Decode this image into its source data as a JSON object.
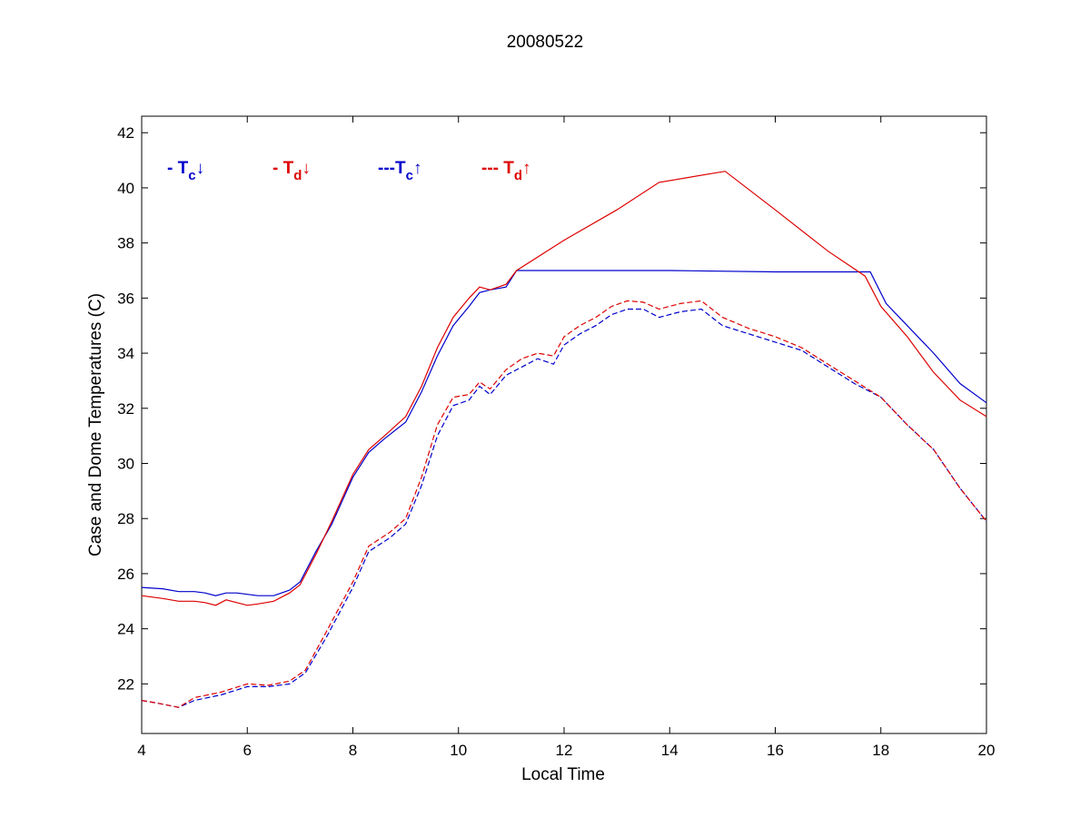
{
  "chart_data": {
    "type": "line",
    "title": "20080522",
    "xlabel": "Local Time",
    "ylabel": "Case and Dome Temperatures (C)",
    "xlim": [
      4,
      20
    ],
    "ylim": [
      20.2,
      42.6
    ],
    "xticks": [
      4,
      6,
      8,
      10,
      12,
      14,
      16,
      18,
      20
    ],
    "yticks": [
      22,
      24,
      26,
      28,
      30,
      32,
      34,
      36,
      38,
      40,
      42
    ],
    "grid": false,
    "legend_position": "top-left",
    "series": [
      {
        "name": "- Tc↓",
        "legend_prefix": "- ",
        "legend_base": "T",
        "legend_sub": "c",
        "legend_arrow": "↓",
        "color": "#0000cc",
        "dash": "solid",
        "x": [
          4.0,
          4.4,
          4.7,
          5.0,
          5.2,
          5.4,
          5.6,
          5.8,
          6.0,
          6.2,
          6.5,
          6.8,
          7.0,
          7.3,
          7.6,
          8.0,
          8.3,
          8.6,
          9.0,
          9.3,
          9.6,
          9.9,
          10.2,
          10.4,
          10.6,
          10.9,
          11.1,
          12.0,
          14.0,
          16.0,
          17.0,
          17.8,
          18.1,
          18.5,
          19.0,
          19.5,
          20.0
        ],
        "y": [
          25.5,
          25.45,
          25.35,
          25.35,
          25.3,
          25.2,
          25.3,
          25.3,
          25.25,
          25.2,
          25.2,
          25.4,
          25.7,
          26.8,
          27.8,
          29.5,
          30.4,
          30.9,
          31.5,
          32.6,
          33.9,
          35.0,
          35.7,
          36.2,
          36.3,
          36.4,
          37.0,
          37.0,
          37.0,
          36.95,
          36.95,
          36.95,
          35.8,
          35.0,
          34.0,
          32.9,
          32.2
        ]
      },
      {
        "name": "- Td↓",
        "legend_prefix": "- ",
        "legend_base": "T",
        "legend_sub": "d",
        "legend_arrow": "↓",
        "color": "#dd0000",
        "dash": "solid",
        "x": [
          4.0,
          4.4,
          4.7,
          5.0,
          5.2,
          5.4,
          5.6,
          5.8,
          6.0,
          6.2,
          6.5,
          6.8,
          7.0,
          7.3,
          7.6,
          8.0,
          8.3,
          8.6,
          9.0,
          9.3,
          9.6,
          9.9,
          10.2,
          10.4,
          10.6,
          10.9,
          11.1,
          12.0,
          13.0,
          13.8,
          15.05,
          16.0,
          17.0,
          17.7,
          18.0,
          18.5,
          19.0,
          19.5,
          20.0
        ],
        "y": [
          25.2,
          25.1,
          25.0,
          25.0,
          24.95,
          24.85,
          25.05,
          24.95,
          24.85,
          24.9,
          25.0,
          25.3,
          25.6,
          26.7,
          27.9,
          29.6,
          30.5,
          31.0,
          31.7,
          32.8,
          34.2,
          35.3,
          36.0,
          36.4,
          36.3,
          36.5,
          37.0,
          38.1,
          39.2,
          40.2,
          40.6,
          39.2,
          37.7,
          36.8,
          35.7,
          34.6,
          33.3,
          32.3,
          31.7
        ]
      },
      {
        "name": "---Tc↑",
        "legend_prefix": "---",
        "legend_base": "T",
        "legend_sub": "c",
        "legend_arrow": "↑",
        "color": "#0000cc",
        "dash": "dashed",
        "x": [
          4.0,
          4.3,
          4.7,
          5.0,
          5.5,
          6.0,
          6.4,
          6.8,
          7.1,
          7.5,
          8.0,
          8.3,
          8.7,
          9.0,
          9.3,
          9.6,
          9.9,
          10.2,
          10.4,
          10.6,
          10.9,
          11.2,
          11.5,
          11.8,
          12.0,
          12.3,
          12.6,
          12.9,
          13.2,
          13.5,
          13.8,
          14.2,
          14.6,
          15.0,
          15.5,
          16.0,
          16.5,
          17.0,
          17.5,
          18.0,
          18.5,
          19.0,
          19.5,
          20.0
        ],
        "y": [
          21.4,
          21.3,
          21.15,
          21.4,
          21.6,
          21.9,
          21.9,
          22.0,
          22.4,
          23.7,
          25.5,
          26.8,
          27.3,
          27.8,
          29.2,
          31.0,
          32.1,
          32.3,
          32.8,
          32.5,
          33.2,
          33.5,
          33.8,
          33.6,
          34.3,
          34.7,
          35.0,
          35.4,
          35.6,
          35.6,
          35.3,
          35.5,
          35.6,
          35.0,
          34.7,
          34.4,
          34.1,
          33.5,
          32.9,
          32.4,
          31.4,
          30.5,
          29.1,
          27.9
        ]
      },
      {
        "name": "--- Td↑",
        "legend_prefix": "--- ",
        "legend_base": "T",
        "legend_sub": "d",
        "legend_arrow": "↑",
        "color": "#dd0000",
        "dash": "dashed",
        "x": [
          4.0,
          4.3,
          4.7,
          5.0,
          5.5,
          6.0,
          6.4,
          6.8,
          7.1,
          7.5,
          8.0,
          8.3,
          8.7,
          9.0,
          9.3,
          9.6,
          9.9,
          10.2,
          10.4,
          10.6,
          10.9,
          11.2,
          11.5,
          11.8,
          12.0,
          12.3,
          12.6,
          12.9,
          13.2,
          13.5,
          13.8,
          14.2,
          14.6,
          15.0,
          15.5,
          16.0,
          16.5,
          17.0,
          17.5,
          18.0,
          18.5,
          19.0,
          19.5,
          20.0
        ],
        "y": [
          21.4,
          21.3,
          21.15,
          21.5,
          21.7,
          22.0,
          21.95,
          22.1,
          22.5,
          23.9,
          25.7,
          27.0,
          27.5,
          28.0,
          29.5,
          31.4,
          32.4,
          32.5,
          32.95,
          32.7,
          33.4,
          33.8,
          34.0,
          33.9,
          34.6,
          35.0,
          35.3,
          35.7,
          35.9,
          35.85,
          35.6,
          35.8,
          35.9,
          35.3,
          34.9,
          34.6,
          34.2,
          33.6,
          33.0,
          32.4,
          31.4,
          30.5,
          29.1,
          27.9
        ]
      }
    ]
  }
}
